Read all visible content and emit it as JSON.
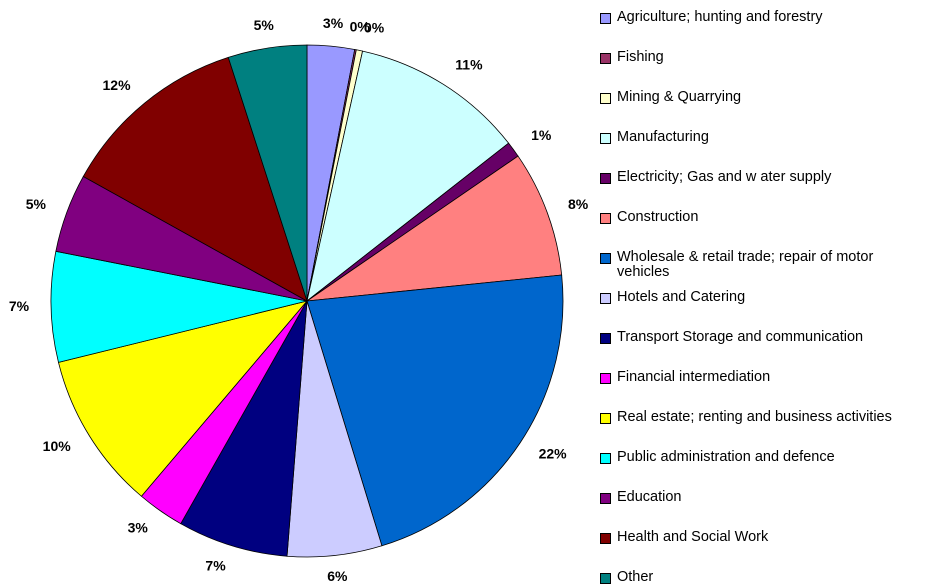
{
  "chart_data": {
    "type": "pie",
    "categories": [
      "Agriculture; hunting and forestry",
      "Fishing",
      "Mining & Quarrying",
      "Manufacturing",
      "Electricity; Gas and w ater supply",
      "Construction",
      "Wholesale & retail trade; repair of motor vehicles",
      "Hotels and Catering",
      "Transport Storage and communication",
      "Financial intermediation",
      "Real estate; renting and business activities",
      "Public administration and defence",
      "Education",
      "Health and Social Work",
      "Other"
    ],
    "values": [
      3,
      0.1,
      0.4,
      11,
      1,
      8,
      22,
      6,
      7,
      3,
      10,
      7,
      5,
      12,
      5
    ],
    "value_labels": [
      "3%",
      "0%",
      "0%",
      "11%",
      "1%",
      "8%",
      "22%",
      "6%",
      "7%",
      "3%",
      "10%",
      "7%",
      "5%",
      "12%",
      "5%"
    ],
    "colors": [
      "#9999ff",
      "#993366",
      "#ffffcc",
      "#ccffff",
      "#660066",
      "#ff8080",
      "#0066cc",
      "#ccccff",
      "#000080",
      "#ff00ff",
      "#ffff00",
      "#00ffff",
      "#800080",
      "#800000",
      "#008080"
    ],
    "legend": "right"
  }
}
